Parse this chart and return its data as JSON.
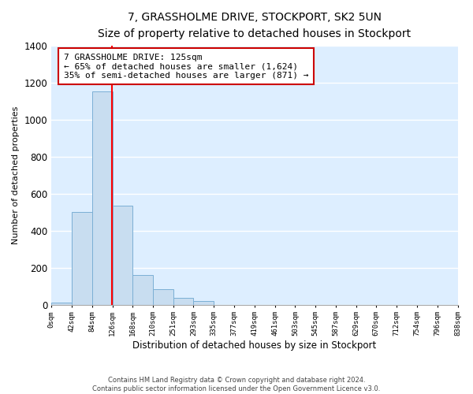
{
  "title": "7, GRASSHOLME DRIVE, STOCKPORT, SK2 5UN",
  "subtitle": "Size of property relative to detached houses in Stockport",
  "xlabel": "Distribution of detached houses by size in Stockport",
  "ylabel": "Number of detached properties",
  "bin_edges": [
    0,
    42,
    84,
    126,
    168,
    210,
    251,
    293,
    335,
    377,
    419,
    461,
    503,
    545,
    587,
    629,
    670,
    712,
    754,
    796,
    838
  ],
  "bin_labels": [
    "0sqm",
    "42sqm",
    "84sqm",
    "126sqm",
    "168sqm",
    "210sqm",
    "251sqm",
    "293sqm",
    "335sqm",
    "377sqm",
    "419sqm",
    "461sqm",
    "503sqm",
    "545sqm",
    "587sqm",
    "629sqm",
    "670sqm",
    "712sqm",
    "754sqm",
    "796sqm",
    "838sqm"
  ],
  "bar_heights": [
    10,
    500,
    1150,
    535,
    160,
    85,
    35,
    20,
    0,
    0,
    0,
    0,
    0,
    0,
    0,
    0,
    0,
    0,
    0,
    0
  ],
  "bar_color": "#c8ddf0",
  "bar_edge_color": "#7bafd4",
  "vline_x": 125,
  "vline_color": "red",
  "ylim": [
    0,
    1400
  ],
  "yticks": [
    0,
    200,
    400,
    600,
    800,
    1000,
    1200,
    1400
  ],
  "annotation_title": "7 GRASSHOLME DRIVE: 125sqm",
  "annotation_line1": "← 65% of detached houses are smaller (1,624)",
  "annotation_line2": "35% of semi-detached houses are larger (871) →",
  "annotation_box_color": "#ffffff",
  "annotation_box_edge": "#cc0000",
  "footnote1": "Contains HM Land Registry data © Crown copyright and database right 2024.",
  "footnote2": "Contains public sector information licensed under the Open Government Licence v3.0.",
  "bg_color": "#ddeeff",
  "fig_bg_color": "#ffffff",
  "grid_color": "#ffffff"
}
